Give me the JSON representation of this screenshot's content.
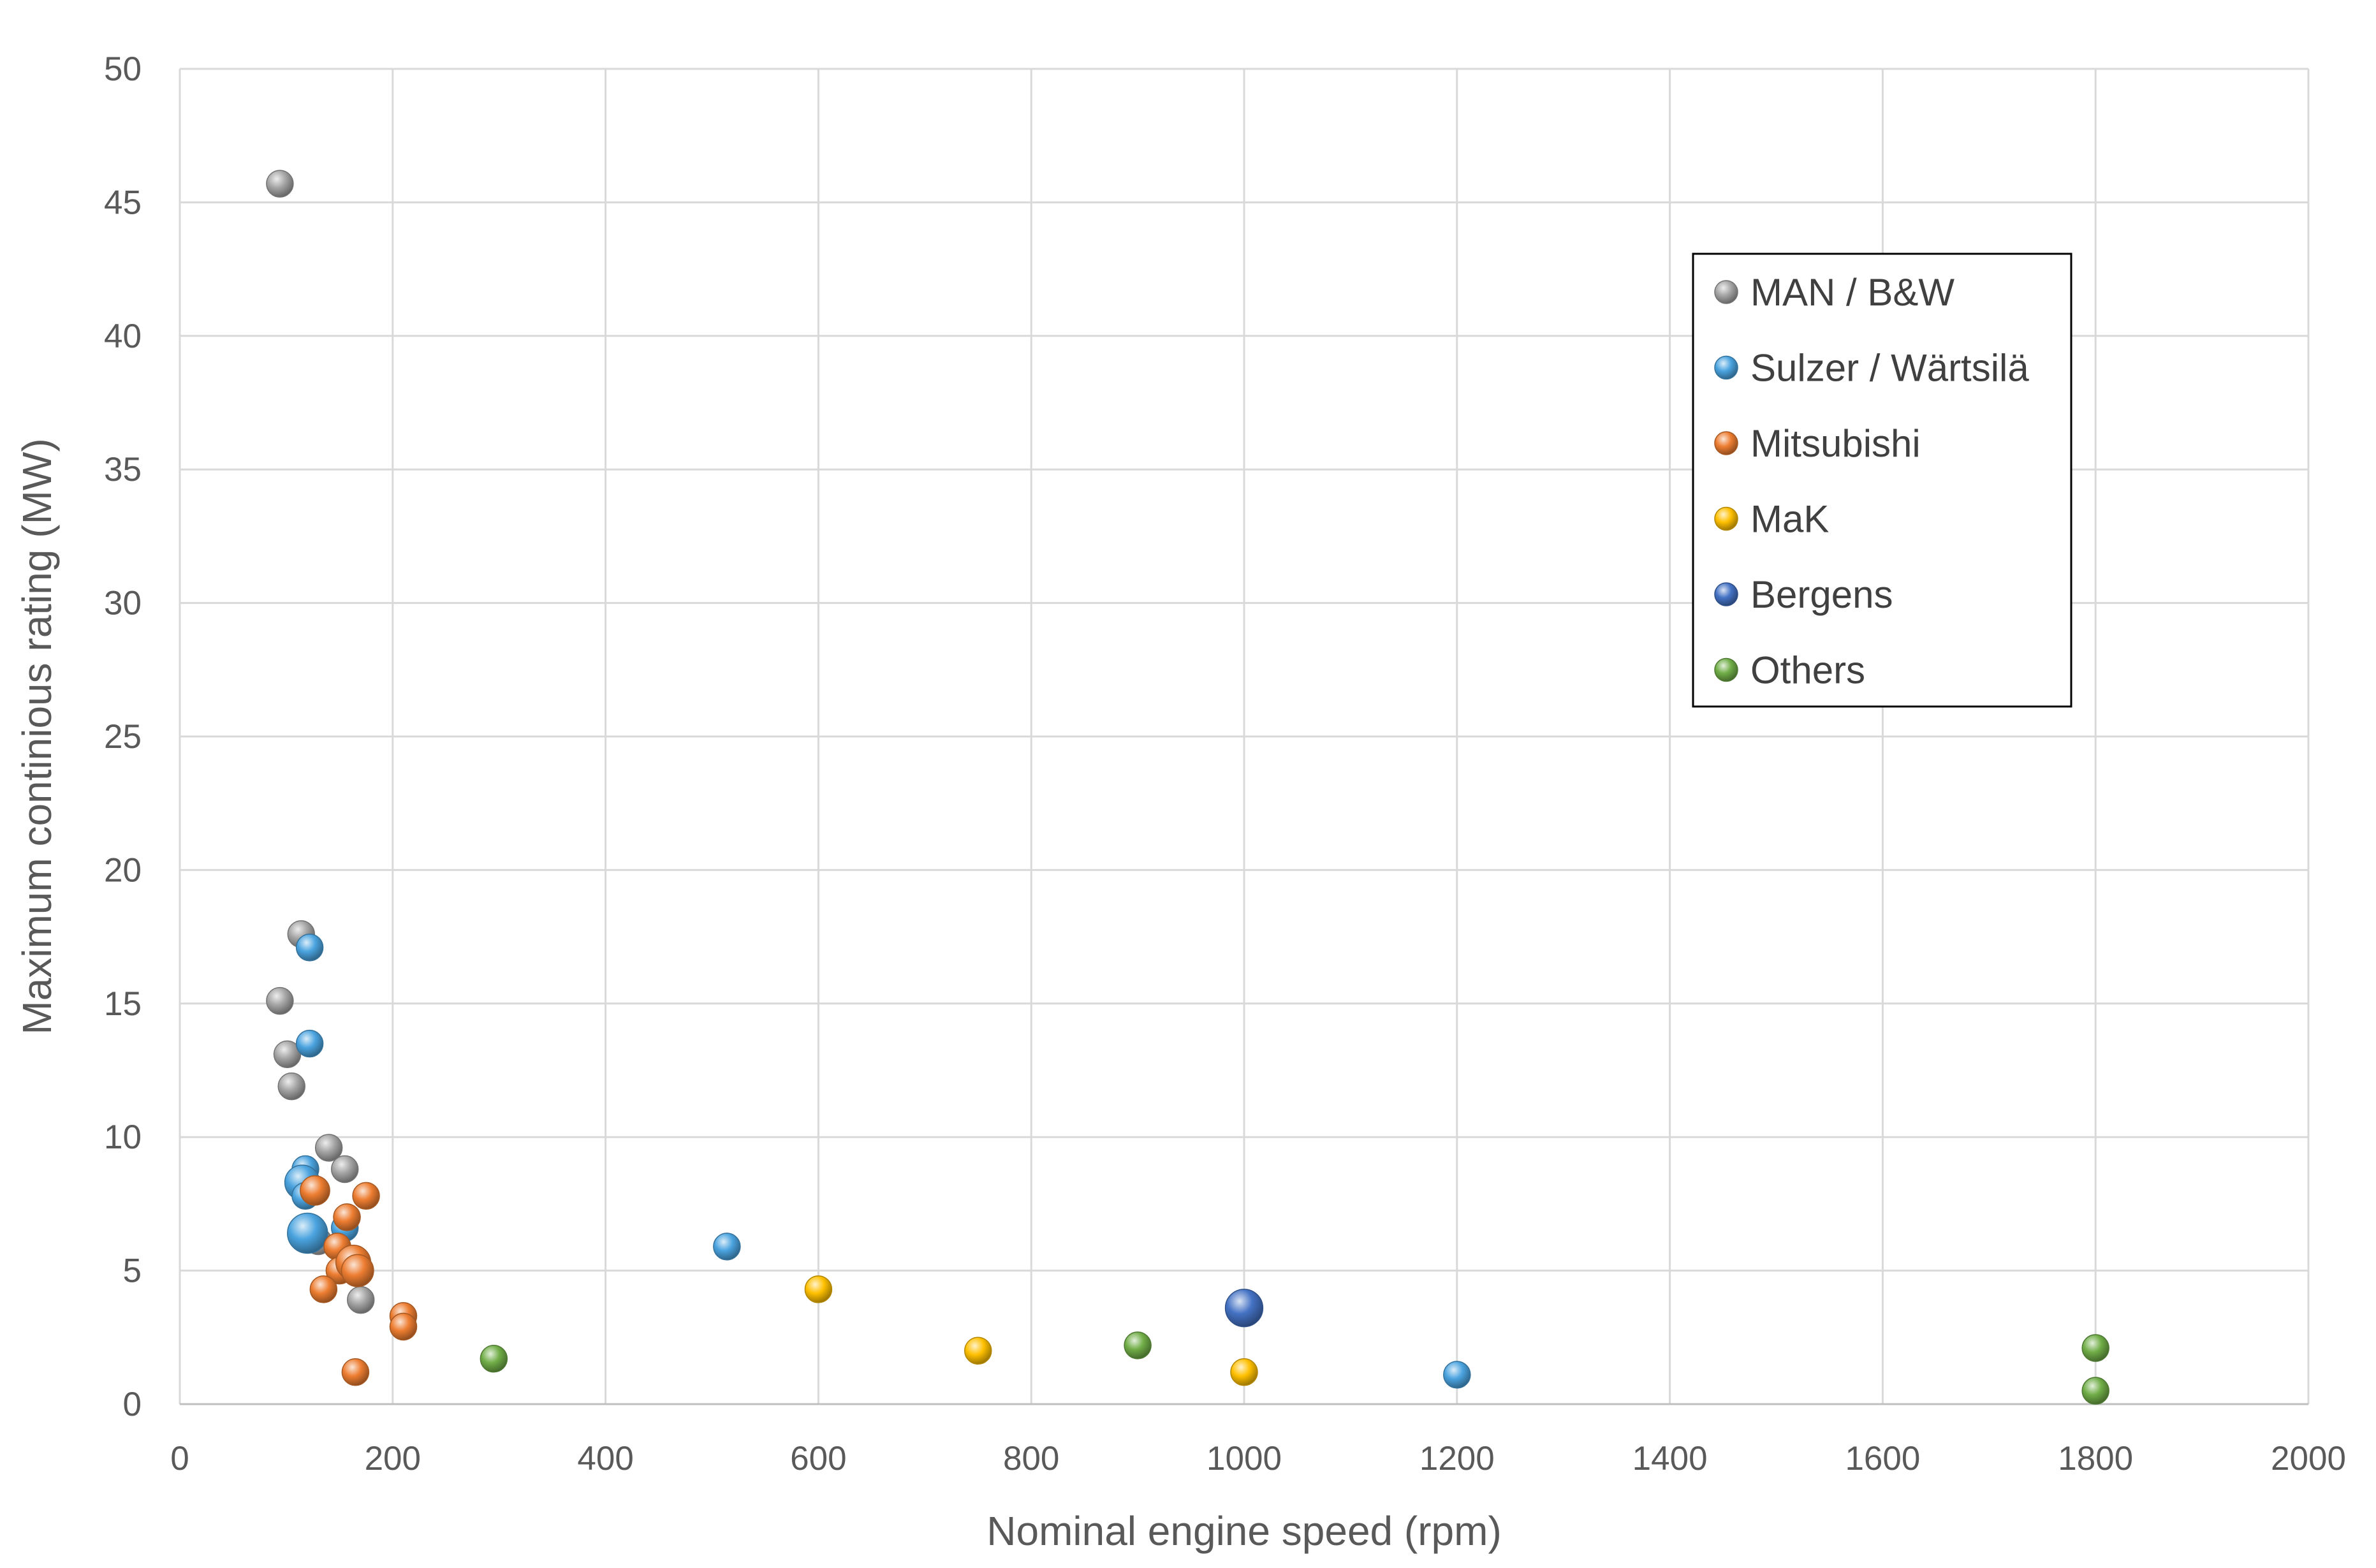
{
  "chart_data": {
    "type": "scatter",
    "title": "",
    "xlabel": "Nominal engine speed (rpm)",
    "ylabel": "Maximum continious rating (MW)",
    "xlim": [
      0,
      2000
    ],
    "ylim": [
      0,
      50
    ],
    "xticks": [
      "0",
      "200",
      "400",
      "600",
      "800",
      "1000",
      "1200",
      "1400",
      "1600",
      "1800",
      "2000"
    ],
    "yticks": [
      "0",
      "5",
      "10",
      "15",
      "20",
      "25",
      "30",
      "35",
      "40",
      "45",
      "50"
    ],
    "grid": true,
    "legend_position": "top-right",
    "series": [
      {
        "name": "MAN / B&W",
        "color": "#a5a5a5",
        "points": [
          {
            "x": 94,
            "y": 45.7,
            "r": 1
          },
          {
            "x": 114,
            "y": 17.6,
            "r": 1
          },
          {
            "x": 94,
            "y": 15.1,
            "r": 1
          },
          {
            "x": 101,
            "y": 13.1,
            "r": 1
          },
          {
            "x": 105,
            "y": 11.9,
            "r": 1
          },
          {
            "x": 140,
            "y": 9.6,
            "r": 1
          },
          {
            "x": 155,
            "y": 8.8,
            "r": 1
          },
          {
            "x": 130,
            "y": 6.1,
            "r": 1
          },
          {
            "x": 170,
            "y": 3.9,
            "r": 1
          }
        ]
      },
      {
        "name": "Sulzer / Wärtsilä",
        "color": "#4aa3df",
        "points": [
          {
            "x": 122,
            "y": 17.1,
            "r": 1
          },
          {
            "x": 122,
            "y": 13.5,
            "r": 1
          },
          {
            "x": 118,
            "y": 8.8,
            "r": 1
          },
          {
            "x": 115,
            "y": 8.3,
            "r": 1.3
          },
          {
            "x": 118,
            "y": 7.8,
            "r": 1
          },
          {
            "x": 155,
            "y": 6.6,
            "r": 1
          },
          {
            "x": 120,
            "y": 6.4,
            "r": 1.5
          },
          {
            "x": 514,
            "y": 5.9,
            "r": 1
          },
          {
            "x": 1200,
            "y": 1.1,
            "r": 1
          }
        ]
      },
      {
        "name": "Mitsubishi",
        "color": "#ed7d31",
        "points": [
          {
            "x": 127,
            "y": 8.0,
            "r": 1.1
          },
          {
            "x": 175,
            "y": 7.8,
            "r": 1
          },
          {
            "x": 157,
            "y": 7.0,
            "r": 1
          },
          {
            "x": 148,
            "y": 5.9,
            "r": 1
          },
          {
            "x": 150,
            "y": 5.0,
            "r": 1
          },
          {
            "x": 163,
            "y": 5.3,
            "r": 1.3
          },
          {
            "x": 167,
            "y": 5.0,
            "r": 1.2
          },
          {
            "x": 135,
            "y": 4.3,
            "r": 1
          },
          {
            "x": 210,
            "y": 3.3,
            "r": 1
          },
          {
            "x": 210,
            "y": 2.9,
            "r": 1
          },
          {
            "x": 165,
            "y": 1.2,
            "r": 1
          }
        ]
      },
      {
        "name": "MaK",
        "color": "#ffc000",
        "points": [
          {
            "x": 600,
            "y": 4.3,
            "r": 1
          },
          {
            "x": 750,
            "y": 2.0,
            "r": 1
          },
          {
            "x": 1000,
            "y": 1.2,
            "r": 1
          }
        ]
      },
      {
        "name": "Bergens",
        "color": "#4472c4",
        "points": [
          {
            "x": 1000,
            "y": 3.6,
            "r": 1.4
          }
        ]
      },
      {
        "name": "Others",
        "color": "#70ad47",
        "points": [
          {
            "x": 295,
            "y": 1.7,
            "r": 1
          },
          {
            "x": 900,
            "y": 2.2,
            "r": 1
          },
          {
            "x": 1800,
            "y": 2.1,
            "r": 1
          },
          {
            "x": 1800,
            "y": 0.5,
            "r": 1
          }
        ]
      }
    ]
  }
}
